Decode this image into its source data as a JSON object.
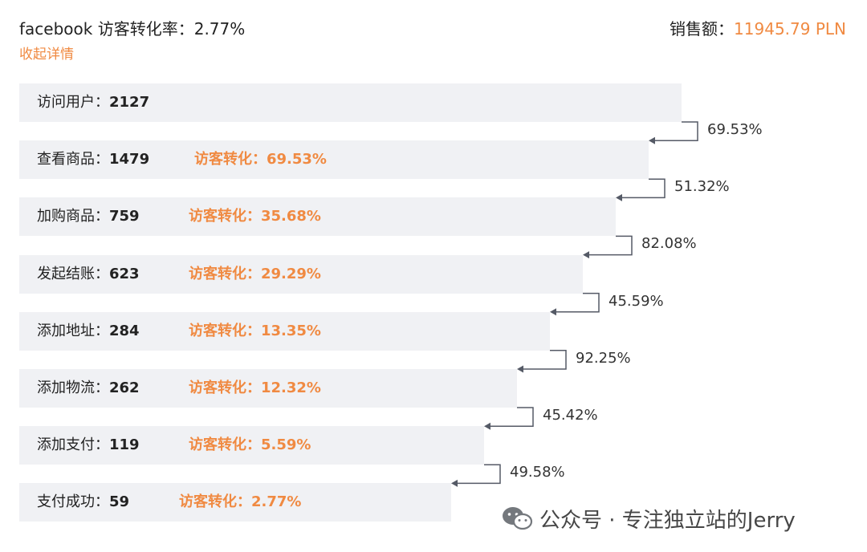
{
  "header": {
    "channel": "facebook",
    "conversion_label": "访客转化率：",
    "conversion_value": "2.77%",
    "collapse_link": "收起详情",
    "sales_label": "销售额：",
    "sales_value": "11945.79 PLN"
  },
  "colors": {
    "accent": "#f08a42",
    "bar": "#f0f1f4",
    "text": "#222222",
    "connector": "#555a66"
  },
  "chart_data": {
    "type": "bar",
    "orientation": "horizontal-funnel",
    "categories": [
      "访问用户",
      "查看商品",
      "加购商品",
      "发起结账",
      "添加地址",
      "添加物流",
      "添加支付",
      "支付成功"
    ],
    "values": [
      2127,
      1479,
      759,
      623,
      284,
      262,
      119,
      59
    ],
    "stage_labels": [
      "访问用户：",
      "查看商品：",
      "加购商品：",
      "发起结账：",
      "添加地址：",
      "添加物流：",
      "添加支付：",
      "支付成功："
    ],
    "visitor_conversion_label": "访客转化：",
    "visitor_conversion": [
      null,
      "69.53%",
      "35.68%",
      "29.29%",
      "13.35%",
      "12.32%",
      "5.59%",
      "2.77%"
    ],
    "step_rates": [
      "69.53%",
      "51.32%",
      "82.08%",
      "45.59%",
      "92.25%",
      "45.42%",
      "49.58%"
    ]
  },
  "watermark": {
    "icon": "wechat-icon",
    "text": "公众号 · 专注独立站的Jerry"
  }
}
